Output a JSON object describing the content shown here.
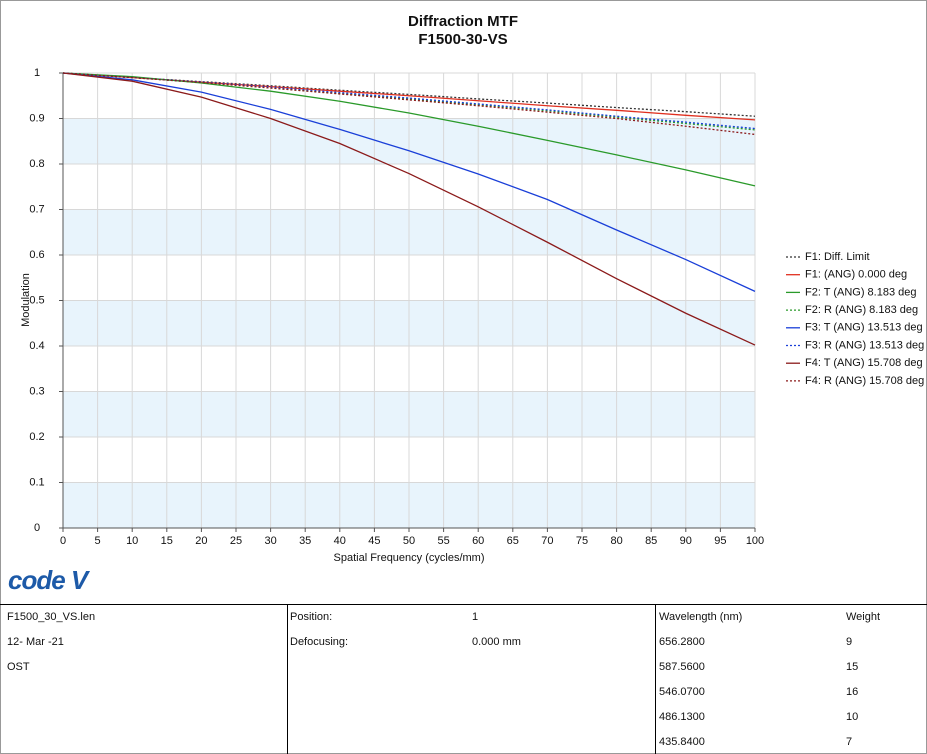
{
  "chart_data": {
    "type": "line",
    "title": "Diffraction MTF",
    "subtitle": "F1500-30-VS",
    "x_label": "Spatial Frequency (cycles/mm)",
    "y_label": "Modulation",
    "x": [
      0,
      10,
      20,
      30,
      40,
      50,
      60,
      70,
      80,
      90,
      100
    ],
    "series": [
      {
        "name": "F1: Diff. Limit",
        "color": "#333333",
        "dash": true,
        "values": [
          1,
          0.99,
          0.981,
          0.972,
          0.962,
          0.953,
          0.943,
          0.934,
          0.924,
          0.915,
          0.905
        ]
      },
      {
        "name": "F1: (ANG) 0.000 deg",
        "color": "#e03020",
        "dash": false,
        "values": [
          1,
          0.99,
          0.98,
          0.97,
          0.96,
          0.95,
          0.939,
          0.928,
          0.918,
          0.907,
          0.897
        ]
      },
      {
        "name": "F2: T (ANG) 8.183 deg",
        "color": "#2a9a2a",
        "dash": false,
        "values": [
          1,
          0.992,
          0.978,
          0.96,
          0.938,
          0.912,
          0.883,
          0.852,
          0.82,
          0.787,
          0.752
        ]
      },
      {
        "name": "F2: R (ANG) 8.183 deg",
        "color": "#2a9a2a",
        "dash": true,
        "values": [
          1,
          0.99,
          0.979,
          0.967,
          0.955,
          0.943,
          0.93,
          0.917,
          0.903,
          0.889,
          0.875
        ]
      },
      {
        "name": "F3: T (ANG) 13.513 deg",
        "color": "#1a3fd8",
        "dash": false,
        "values": [
          1,
          0.985,
          0.958,
          0.92,
          0.876,
          0.829,
          0.778,
          0.722,
          0.655,
          0.59,
          0.52
        ]
      },
      {
        "name": "F3: R (ANG) 13.513 deg",
        "color": "#1a3fd8",
        "dash": true,
        "values": [
          1,
          0.99,
          0.98,
          0.969,
          0.957,
          0.945,
          0.932,
          0.919,
          0.905,
          0.892,
          0.878
        ]
      },
      {
        "name": "F4: T (ANG) 15.708 deg",
        "color": "#8b1a1a",
        "dash": false,
        "values": [
          1,
          0.982,
          0.947,
          0.9,
          0.845,
          0.779,
          0.706,
          0.628,
          0.548,
          0.472,
          0.402
        ]
      },
      {
        "name": "F4: R (ANG) 15.708 deg",
        "color": "#8b1a1a",
        "dash": true,
        "values": [
          1,
          0.99,
          0.979,
          0.967,
          0.954,
          0.941,
          0.928,
          0.914,
          0.9,
          0.883,
          0.865
        ]
      }
    ],
    "xlim": [
      0,
      100
    ],
    "xticks": [
      0,
      5,
      10,
      15,
      20,
      25,
      30,
      35,
      40,
      45,
      50,
      55,
      60,
      65,
      70,
      75,
      80,
      85,
      90,
      95,
      100
    ],
    "ylim": [
      0,
      1
    ],
    "yticks": [
      0,
      0.1,
      0.2,
      0.3,
      0.4,
      0.5,
      0.6,
      0.7,
      0.8,
      0.9,
      1
    ],
    "grid": true,
    "legend": "right"
  },
  "logo": "code V",
  "info": [
    "F1500_30_VS.len",
    "12- Mar -21",
    "OST"
  ],
  "settings": [
    [
      "Position:",
      "1"
    ],
    [
      "Defocusing:",
      "0.000 mm"
    ]
  ],
  "wavelengths": {
    "header": [
      "Wavelength (nm)",
      "Weight"
    ],
    "rows": [
      [
        "656.2800",
        "9"
      ],
      [
        "587.5600",
        "15"
      ],
      [
        "546.0700",
        "16"
      ],
      [
        "486.1300",
        "10"
      ],
      [
        "435.8400",
        "7"
      ]
    ]
  }
}
